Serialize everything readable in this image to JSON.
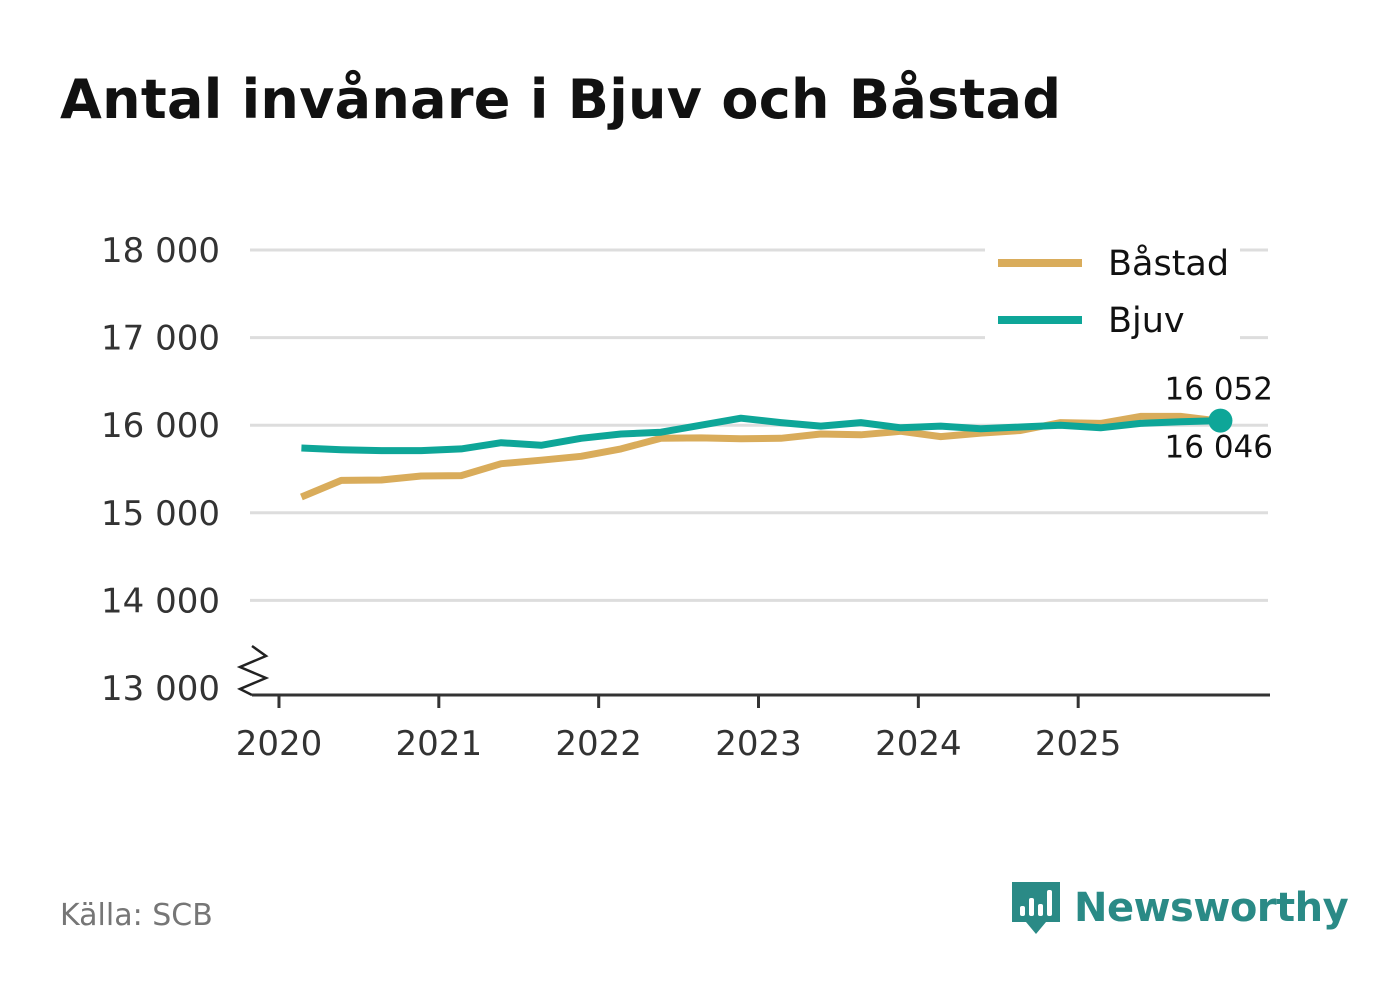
{
  "title": "Antal invånare i Bjuv och Båstad",
  "source": "Källa: SCB",
  "brand": {
    "name": "Newsworthy",
    "icon": "newsworthy-logo-icon",
    "color": "#2a8a86"
  },
  "chart_data": {
    "type": "line",
    "title": "Antal invånare i Bjuv och Båstad",
    "xlabel": "",
    "ylabel": "",
    "ylim": [
      13000,
      18000
    ],
    "xlim": [
      2019.85,
      2026.15
    ],
    "grid": true,
    "axis_break": true,
    "legend_position": "top-right",
    "yticks": [
      13000,
      14000,
      15000,
      16000,
      17000,
      18000
    ],
    "ytick_labels": [
      "13 000",
      "14 000",
      "15 000",
      "16 000",
      "17 000",
      "18 000"
    ],
    "xticks": [
      2020,
      2021,
      2022,
      2023,
      2024,
      2025
    ],
    "xtick_labels": [
      "2020",
      "2021",
      "2022",
      "2023",
      "2024",
      "2025"
    ],
    "x": [
      2020.14,
      2020.39,
      2020.64,
      2020.89,
      2021.14,
      2021.39,
      2021.64,
      2021.89,
      2022.14,
      2022.39,
      2022.64,
      2022.89,
      2023.14,
      2023.39,
      2023.64,
      2023.89,
      2024.14,
      2024.39,
      2024.64,
      2024.89,
      2025.14,
      2025.39,
      2025.64,
      2025.89
    ],
    "series": [
      {
        "name": "Båstad",
        "color": "#d9ac5b",
        "values": [
          15180,
          15370,
          15375,
          15420,
          15425,
          15560,
          15600,
          15645,
          15730,
          15850,
          15855,
          15845,
          15850,
          15900,
          15890,
          15930,
          15870,
          15910,
          15940,
          16030,
          16020,
          16100,
          16100,
          16046
        ],
        "end_label": "16 046"
      },
      {
        "name": "Bjuv",
        "color": "#0ea698",
        "values": [
          15740,
          15720,
          15710,
          15710,
          15730,
          15800,
          15770,
          15850,
          15900,
          15920,
          16000,
          16080,
          16030,
          15990,
          16030,
          15970,
          15990,
          15960,
          15980,
          16000,
          15970,
          16020,
          16040,
          16052
        ],
        "end_label": "16 052"
      }
    ]
  }
}
